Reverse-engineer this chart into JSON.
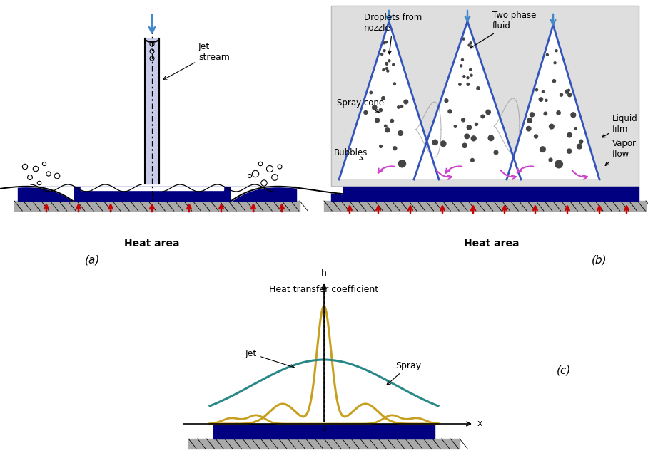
{
  "bg_color": "#ffffff",
  "label_a": "(a)",
  "label_b": "(b)",
  "label_c": "(c)",
  "heat_area_label": "Heat area",
  "jet_stream_label": "Jet\nstream",
  "droplets_label": "Droplets from\nnozzle",
  "two_phase_label": "Two phase\nfluid",
  "spray_cone_label": "Spray cone",
  "bubbles_label": "Bubbles",
  "liquid_film_label": "Liquid\nfilm",
  "vapor_flow_label": "Vapor\nflow",
  "heat_coeff_label": "Heat transfer coefficient",
  "h_label": "h",
  "x_label": "x",
  "jet_curve_label": "Jet",
  "spray_curve_label": "Spray",
  "dark_blue": "#000080",
  "red_arrow_color": "#cc0000",
  "jet_curve_color": "#c8a020",
  "spray_curve_color": "#2a8888",
  "arrow_blue": "#4488cc",
  "spray_box_bg": "#dedede",
  "cone_blue": "#3355bb",
  "vapor_magenta": "#cc44cc",
  "dot_color": "#444444",
  "hatch_bg": "#aaaaaa"
}
